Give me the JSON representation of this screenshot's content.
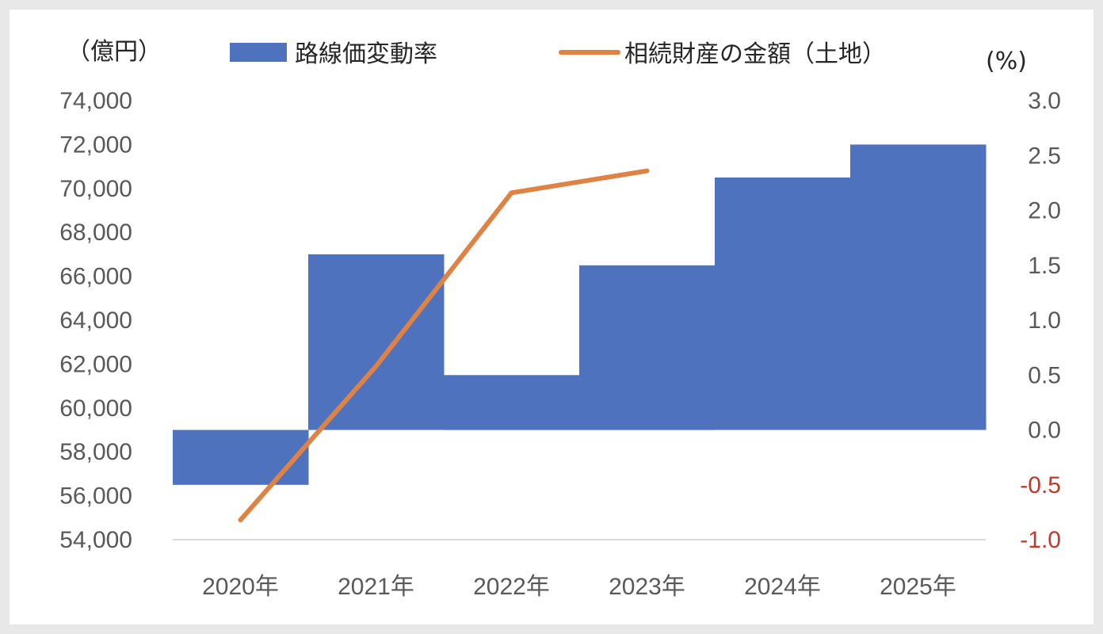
{
  "chart_data": {
    "type": "bar+line",
    "categories": [
      "2020年",
      "2021年",
      "2022年",
      "2023年",
      "2024年",
      "2025年"
    ],
    "left_axis": {
      "unit_label": "（億円）",
      "ylim": [
        54000,
        74000
      ],
      "ticks": [
        "54,000",
        "56,000",
        "58,000",
        "60,000",
        "62,000",
        "64,000",
        "66,000",
        "68,000",
        "70,000",
        "72,000",
        "74,000"
      ],
      "tick_values": [
        54000,
        56000,
        58000,
        60000,
        62000,
        64000,
        66000,
        68000,
        70000,
        72000,
        74000
      ]
    },
    "right_axis": {
      "unit_label": "(%)",
      "ylim": [
        -1.0,
        3.0
      ],
      "ticks": [
        "-1.0",
        "-0.5",
        "0.0",
        "0.5",
        "1.0",
        "1.5",
        "2.0",
        "2.5",
        "3.0"
      ],
      "tick_values": [
        -1.0,
        -0.5,
        0.0,
        0.5,
        1.0,
        1.5,
        2.0,
        2.5,
        3.0
      ],
      "negative_tick_color": "#c0392b"
    },
    "series": [
      {
        "name": "路線価変動率",
        "type": "bar",
        "axis": "right",
        "color": "#4e72be",
        "values": [
          -0.5,
          1.6,
          0.5,
          1.5,
          2.3,
          2.6
        ]
      },
      {
        "name": "相続財産の金額（土地）",
        "type": "line",
        "axis": "left",
        "color": "#de8344",
        "values": [
          54900,
          61900,
          69800,
          70800,
          null,
          null
        ]
      }
    ],
    "grid": false,
    "legend_position": "top"
  }
}
